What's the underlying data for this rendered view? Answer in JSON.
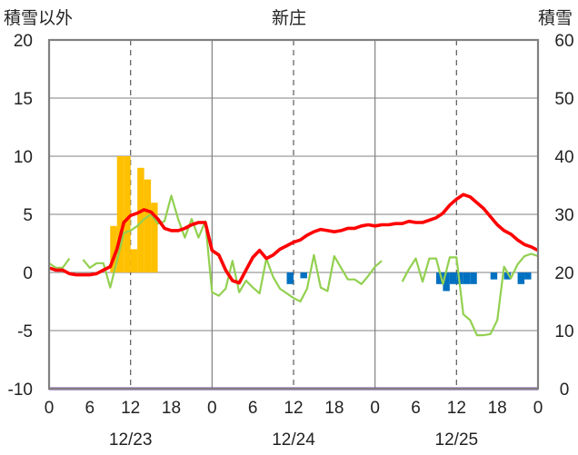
{
  "chart_data": {
    "type": "bar+line",
    "title": "新庄",
    "ylabel_left": "積雪以外",
    "ylabel_right": "積雪",
    "ylim_left": [
      -10,
      20
    ],
    "ylim_right": [
      0,
      60
    ],
    "yticks_left": [
      "20",
      "15",
      "10",
      "5",
      "0",
      "-5",
      "-10"
    ],
    "yticks_right": [
      "60",
      "50",
      "40",
      "30",
      "20",
      "10",
      "0"
    ],
    "xticks": [
      "0",
      "6",
      "12",
      "18",
      "0",
      "6",
      "12",
      "18",
      "0",
      "6",
      "12",
      "18",
      "0"
    ],
    "days": [
      "12/23",
      "12/24",
      "12/25"
    ],
    "colors": {
      "snow_depth": "#ff0000",
      "temperature": "#92d050",
      "snowfall_bar": "#ffc000",
      "negative_bar": "#0070c0",
      "baseline": "#7030a0",
      "frame": "#808080"
    },
    "snow_depth_right_axis": [
      {
        "h": 0,
        "v": 20.8
      },
      {
        "h": 1,
        "v": 20.4
      },
      {
        "h": 2,
        "v": 20.4
      },
      {
        "h": 3,
        "v": 19.8
      },
      {
        "h": 4,
        "v": 19.6
      },
      {
        "h": 5,
        "v": 19.6
      },
      {
        "h": 6,
        "v": 19.6
      },
      {
        "h": 7,
        "v": 19.8
      },
      {
        "h": 8,
        "v": 20.4
      },
      {
        "h": 9,
        "v": 21.0
      },
      {
        "h": 10,
        "v": 24.0
      },
      {
        "h": 11,
        "v": 28.6
      },
      {
        "h": 12,
        "v": 29.8
      },
      {
        "h": 13,
        "v": 30.2
      },
      {
        "h": 14,
        "v": 30.8
      },
      {
        "h": 15,
        "v": 30.4
      },
      {
        "h": 16,
        "v": 29.2
      },
      {
        "h": 17,
        "v": 27.6
      },
      {
        "h": 18,
        "v": 27.2
      },
      {
        "h": 19,
        "v": 27.2
      },
      {
        "h": 20,
        "v": 27.6
      },
      {
        "h": 21,
        "v": 28.2
      },
      {
        "h": 22,
        "v": 28.6
      },
      {
        "h": 23,
        "v": 28.6
      },
      {
        "h": 24,
        "v": 23.8
      },
      {
        "h": 25,
        "v": 23.0
      },
      {
        "h": 26,
        "v": 20.4
      },
      {
        "h": 27,
        "v": 18.6
      },
      {
        "h": 28,
        "v": 18.2
      },
      {
        "h": 29,
        "v": 20.4
      },
      {
        "h": 30,
        "v": 22.6
      },
      {
        "h": 31,
        "v": 23.8
      },
      {
        "h": 32,
        "v": 22.4
      },
      {
        "h": 33,
        "v": 23.0
      },
      {
        "h": 34,
        "v": 24.0
      },
      {
        "h": 35,
        "v": 24.6
      },
      {
        "h": 36,
        "v": 25.2
      },
      {
        "h": 37,
        "v": 25.6
      },
      {
        "h": 38,
        "v": 26.4
      },
      {
        "h": 39,
        "v": 27.0
      },
      {
        "h": 40,
        "v": 27.4
      },
      {
        "h": 41,
        "v": 27.2
      },
      {
        "h": 42,
        "v": 27.0
      },
      {
        "h": 43,
        "v": 27.2
      },
      {
        "h": 44,
        "v": 27.6
      },
      {
        "h": 45,
        "v": 27.6
      },
      {
        "h": 46,
        "v": 28.0
      },
      {
        "h": 47,
        "v": 28.2
      },
      {
        "h": 48,
        "v": 28.0
      },
      {
        "h": 49,
        "v": 28.2
      },
      {
        "h": 50,
        "v": 28.2
      },
      {
        "h": 51,
        "v": 28.4
      },
      {
        "h": 52,
        "v": 28.4
      },
      {
        "h": 53,
        "v": 28.8
      },
      {
        "h": 54,
        "v": 28.6
      },
      {
        "h": 55,
        "v": 28.6
      },
      {
        "h": 56,
        "v": 29.0
      },
      {
        "h": 57,
        "v": 29.4
      },
      {
        "h": 58,
        "v": 30.2
      },
      {
        "h": 59,
        "v": 31.6
      },
      {
        "h": 60,
        "v": 32.6
      },
      {
        "h": 61,
        "v": 33.4
      },
      {
        "h": 62,
        "v": 33.0
      },
      {
        "h": 63,
        "v": 32.0
      },
      {
        "h": 64,
        "v": 31.0
      },
      {
        "h": 65,
        "v": 29.6
      },
      {
        "h": 66,
        "v": 28.2
      },
      {
        "h": 67,
        "v": 27.2
      },
      {
        "h": 68,
        "v": 26.6
      },
      {
        "h": 69,
        "v": 25.6
      },
      {
        "h": 70,
        "v": 24.8
      },
      {
        "h": 71,
        "v": 24.4
      },
      {
        "h": 72,
        "v": 23.8
      }
    ],
    "temperature_left_axis": [
      [
        {
          "h": 0,
          "v": 0.8
        },
        {
          "h": 1,
          "v": 0.4
        },
        {
          "h": 2,
          "v": 0.4
        },
        {
          "h": 3,
          "v": 1.2
        }
      ],
      [
        {
          "h": 5,
          "v": 1.1
        },
        {
          "h": 6,
          "v": 0.4
        },
        {
          "h": 7,
          "v": 0.8
        },
        {
          "h": 8,
          "v": 0.8
        },
        {
          "h": 9,
          "v": -1.3
        },
        {
          "h": 10,
          "v": 1.0
        },
        {
          "h": 11,
          "v": 3.4
        },
        {
          "h": 12,
          "v": 3.6
        },
        {
          "h": 13,
          "v": 4.0
        },
        {
          "h": 14,
          "v": 4.6
        },
        {
          "h": 15,
          "v": 5.0
        },
        {
          "h": 16,
          "v": 4.2
        },
        {
          "h": 17,
          "v": 4.4
        },
        {
          "h": 18,
          "v": 6.6
        },
        {
          "h": 19,
          "v": 4.6
        },
        {
          "h": 20,
          "v": 3.0
        },
        {
          "h": 21,
          "v": 4.6
        },
        {
          "h": 22,
          "v": 3.0
        },
        {
          "h": 23,
          "v": 4.4
        },
        {
          "h": 24,
          "v": -1.7
        },
        {
          "h": 25,
          "v": -2.0
        },
        {
          "h": 26,
          "v": -1.4
        },
        {
          "h": 27,
          "v": 1.0
        },
        {
          "h": 28,
          "v": -1.7
        },
        {
          "h": 29,
          "v": -0.7
        },
        {
          "h": 30,
          "v": -1.3
        },
        {
          "h": 31,
          "v": -1.8
        },
        {
          "h": 32,
          "v": 1.2
        },
        {
          "h": 33,
          "v": -0.4
        },
        {
          "h": 34,
          "v": -1.4
        },
        {
          "h": 35,
          "v": -1.8
        },
        {
          "h": 36,
          "v": -2.2
        },
        {
          "h": 37,
          "v": -2.5
        },
        {
          "h": 38,
          "v": -1.4
        },
        {
          "h": 39,
          "v": 1.5
        },
        {
          "h": 40,
          "v": -1.3
        },
        {
          "h": 41,
          "v": -1.6
        },
        {
          "h": 42,
          "v": 1.4
        },
        {
          "h": 43,
          "v": 0.4
        },
        {
          "h": 44,
          "v": -0.6
        },
        {
          "h": 45,
          "v": -0.6
        },
        {
          "h": 46,
          "v": -1.0
        },
        {
          "h": 47,
          "v": -0.3
        },
        {
          "h": 48,
          "v": 0.5
        },
        {
          "h": 49,
          "v": 1.0
        }
      ],
      [
        {
          "h": 52,
          "v": -0.8
        },
        {
          "h": 53,
          "v": 0.3
        },
        {
          "h": 54,
          "v": 1.2
        },
        {
          "h": 55,
          "v": -0.8
        },
        {
          "h": 56,
          "v": 1.2
        },
        {
          "h": 57,
          "v": 1.2
        },
        {
          "h": 58,
          "v": -1.0
        },
        {
          "h": 59,
          "v": 1.3
        },
        {
          "h": 60,
          "v": 1.3
        },
        {
          "h": 61,
          "v": -3.6
        },
        {
          "h": 62,
          "v": -4.1
        },
        {
          "h": 63,
          "v": -5.4
        },
        {
          "h": 64,
          "v": -5.4
        },
        {
          "h": 65,
          "v": -5.3
        },
        {
          "h": 66,
          "v": -4.1
        },
        {
          "h": 67,
          "v": 0.5
        },
        {
          "h": 68,
          "v": -0.5
        },
        {
          "h": 69,
          "v": 0.7
        },
        {
          "h": 70,
          "v": 1.4
        },
        {
          "h": 71,
          "v": 1.6
        },
        {
          "h": 72,
          "v": 1.4
        }
      ]
    ],
    "snowfall_bars_left_axis": [
      {
        "h": 9.5,
        "v": 4.0
      },
      {
        "h": 10.5,
        "v": 10.0
      },
      {
        "h": 11.5,
        "v": 10.0
      },
      {
        "h": 12.5,
        "v": 2.0
      },
      {
        "h": 13.5,
        "v": 9.0
      },
      {
        "h": 14.5,
        "v": 8.0
      },
      {
        "h": 15.5,
        "v": 6.0
      }
    ],
    "negative_bars_left_axis": [
      {
        "h": 35.5,
        "v": -1.0
      },
      {
        "h": 37.5,
        "v": -0.5
      },
      {
        "h": 57.5,
        "v": -1.0
      },
      {
        "h": 58.5,
        "v": -1.6
      },
      {
        "h": 59.5,
        "v": -1.0
      },
      {
        "h": 60.5,
        "v": -1.0
      },
      {
        "h": 61.5,
        "v": -1.0
      },
      {
        "h": 62.5,
        "v": -1.0
      },
      {
        "h": 65.5,
        "v": -0.6
      },
      {
        "h": 67.5,
        "v": -0.6
      },
      {
        "h": 69.5,
        "v": -1.0
      },
      {
        "h": 70.5,
        "v": -0.6
      }
    ]
  }
}
